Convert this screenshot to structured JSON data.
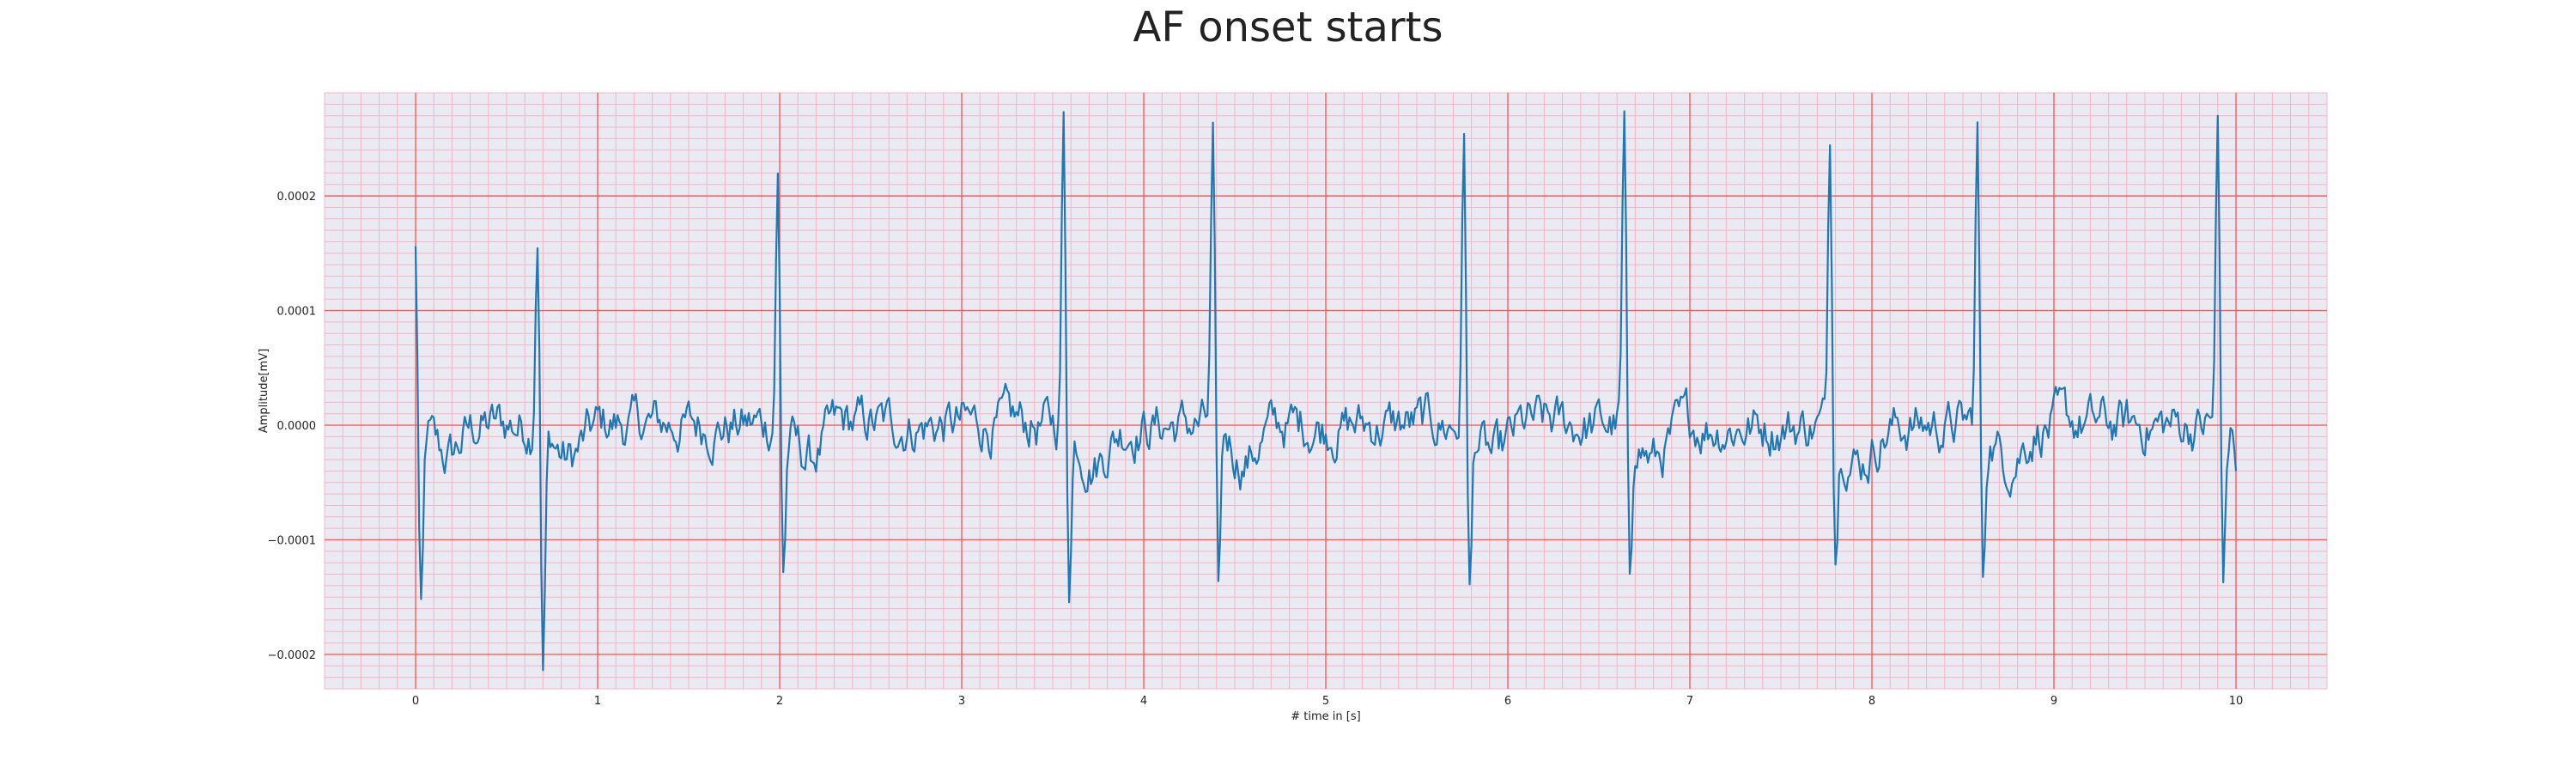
{
  "chart_data": {
    "type": "line",
    "title": "AF onset starts",
    "xlabel": "# time in [s]",
    "ylabel": "Amplitude[mV]",
    "xlim": [
      -0.5,
      10.5
    ],
    "ylim": [
      -0.00023,
      0.00029
    ],
    "x_ticks": [
      0,
      1,
      2,
      3,
      4,
      5,
      6,
      7,
      8,
      9,
      10
    ],
    "x_tick_labels": [
      "0",
      "1",
      "2",
      "3",
      "4",
      "5",
      "6",
      "7",
      "8",
      "9",
      "10"
    ],
    "y_ticks": [
      -0.0002,
      -0.0001,
      0.0,
      0.0001,
      0.0002
    ],
    "y_tick_labels": [
      "−0.0002",
      "−0.0001",
      "0.0000",
      "0.0001",
      "0.0002"
    ],
    "grid": "major and minor",
    "series": [
      {
        "line_color": "#1f77b4",
        "sampling_interval_s": 0.01,
        "r_peak_times": [
          0.0,
          0.67,
          1.99,
          3.56,
          4.38,
          5.76,
          6.64,
          7.77,
          8.58,
          9.9
        ],
        "r_peak_values": [
          0.00016,
          0.00019,
          0.000225,
          0.00027,
          0.00025,
          0.000262,
          0.000268,
          0.000263,
          0.000262,
          0.000265
        ],
        "s_trough_values": [
          -0.00017,
          -0.00021,
          -0.000125,
          -0.000135,
          -0.000152,
          -0.00015,
          -0.00015,
          -0.000102,
          -0.00014,
          -0.00013
        ],
        "end_value": -4e-05
      }
    ]
  },
  "colors": {
    "plot_background": "#eaeaf2",
    "major_grid": "#ff5c5c",
    "minor_grid": "#f5b5c5",
    "trace": "#1f77b4"
  }
}
